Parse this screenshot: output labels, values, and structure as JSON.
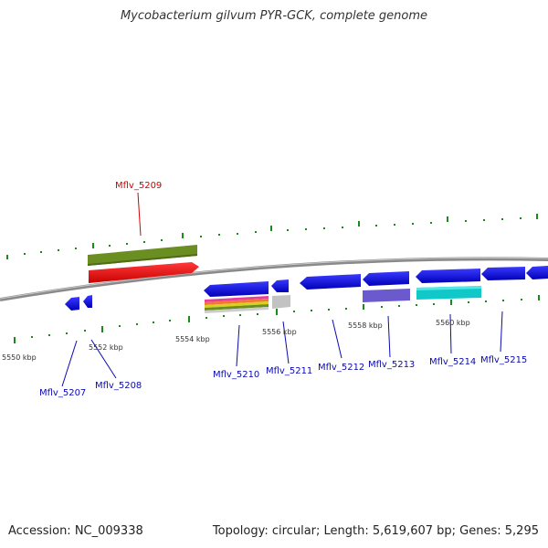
{
  "title": "Mycobacterium gilvum PYR-GCK, complete genome",
  "footer": {
    "accession": "Accession: NC_009338",
    "summary": "Topology: circular; Length: 5,619,607 bp; Genes: 5,295"
  },
  "ticks": [
    {
      "label": "5550 kbp"
    },
    {
      "label": "5552 kbp"
    },
    {
      "label": "5554 kbp"
    },
    {
      "label": "5556 kbp"
    },
    {
      "label": "5558 kbp"
    },
    {
      "label": "5560 kbp"
    }
  ],
  "genes": [
    {
      "id": "Mflv_5207",
      "label": "Mflv_5207",
      "strand": "-",
      "color": "#1010e0"
    },
    {
      "id": "Mflv_5208",
      "label": "Mflv_5208",
      "strand": "-",
      "color": "#1010e0"
    },
    {
      "id": "Mflv_5209",
      "label": "Mflv_5209",
      "strand": "+",
      "color": "#ee1111",
      "highlighted": true
    },
    {
      "id": "Mflv_5210",
      "label": "Mflv_5210",
      "strand": "-",
      "color": "#1010e0"
    },
    {
      "id": "Mflv_5211",
      "label": "Mflv_5211",
      "strand": "-",
      "color": "#1010e0"
    },
    {
      "id": "Mflv_5212",
      "label": "Mflv_5212",
      "strand": "-",
      "color": "#1010e0"
    },
    {
      "id": "Mflv_5213",
      "label": "Mflv_5213",
      "strand": "-",
      "color": "#1010e0"
    },
    {
      "id": "Mflv_5214",
      "label": "Mflv_5214",
      "strand": "-",
      "color": "#1010e0"
    },
    {
      "id": "Mflv_5215",
      "label": "Mflv_5215",
      "strand": "-",
      "color": "#1010e0"
    }
  ],
  "colors": {
    "backbone": "#8a8a8a",
    "gc_skew_ticks": "#1a8a1a",
    "forward_cog": "#6b8e23",
    "cog_olive": "#6b8e23",
    "cog_purple": "#6a5acd",
    "cog_cyan": "#10c8c8",
    "cog_grey": "#bbbbbb"
  }
}
